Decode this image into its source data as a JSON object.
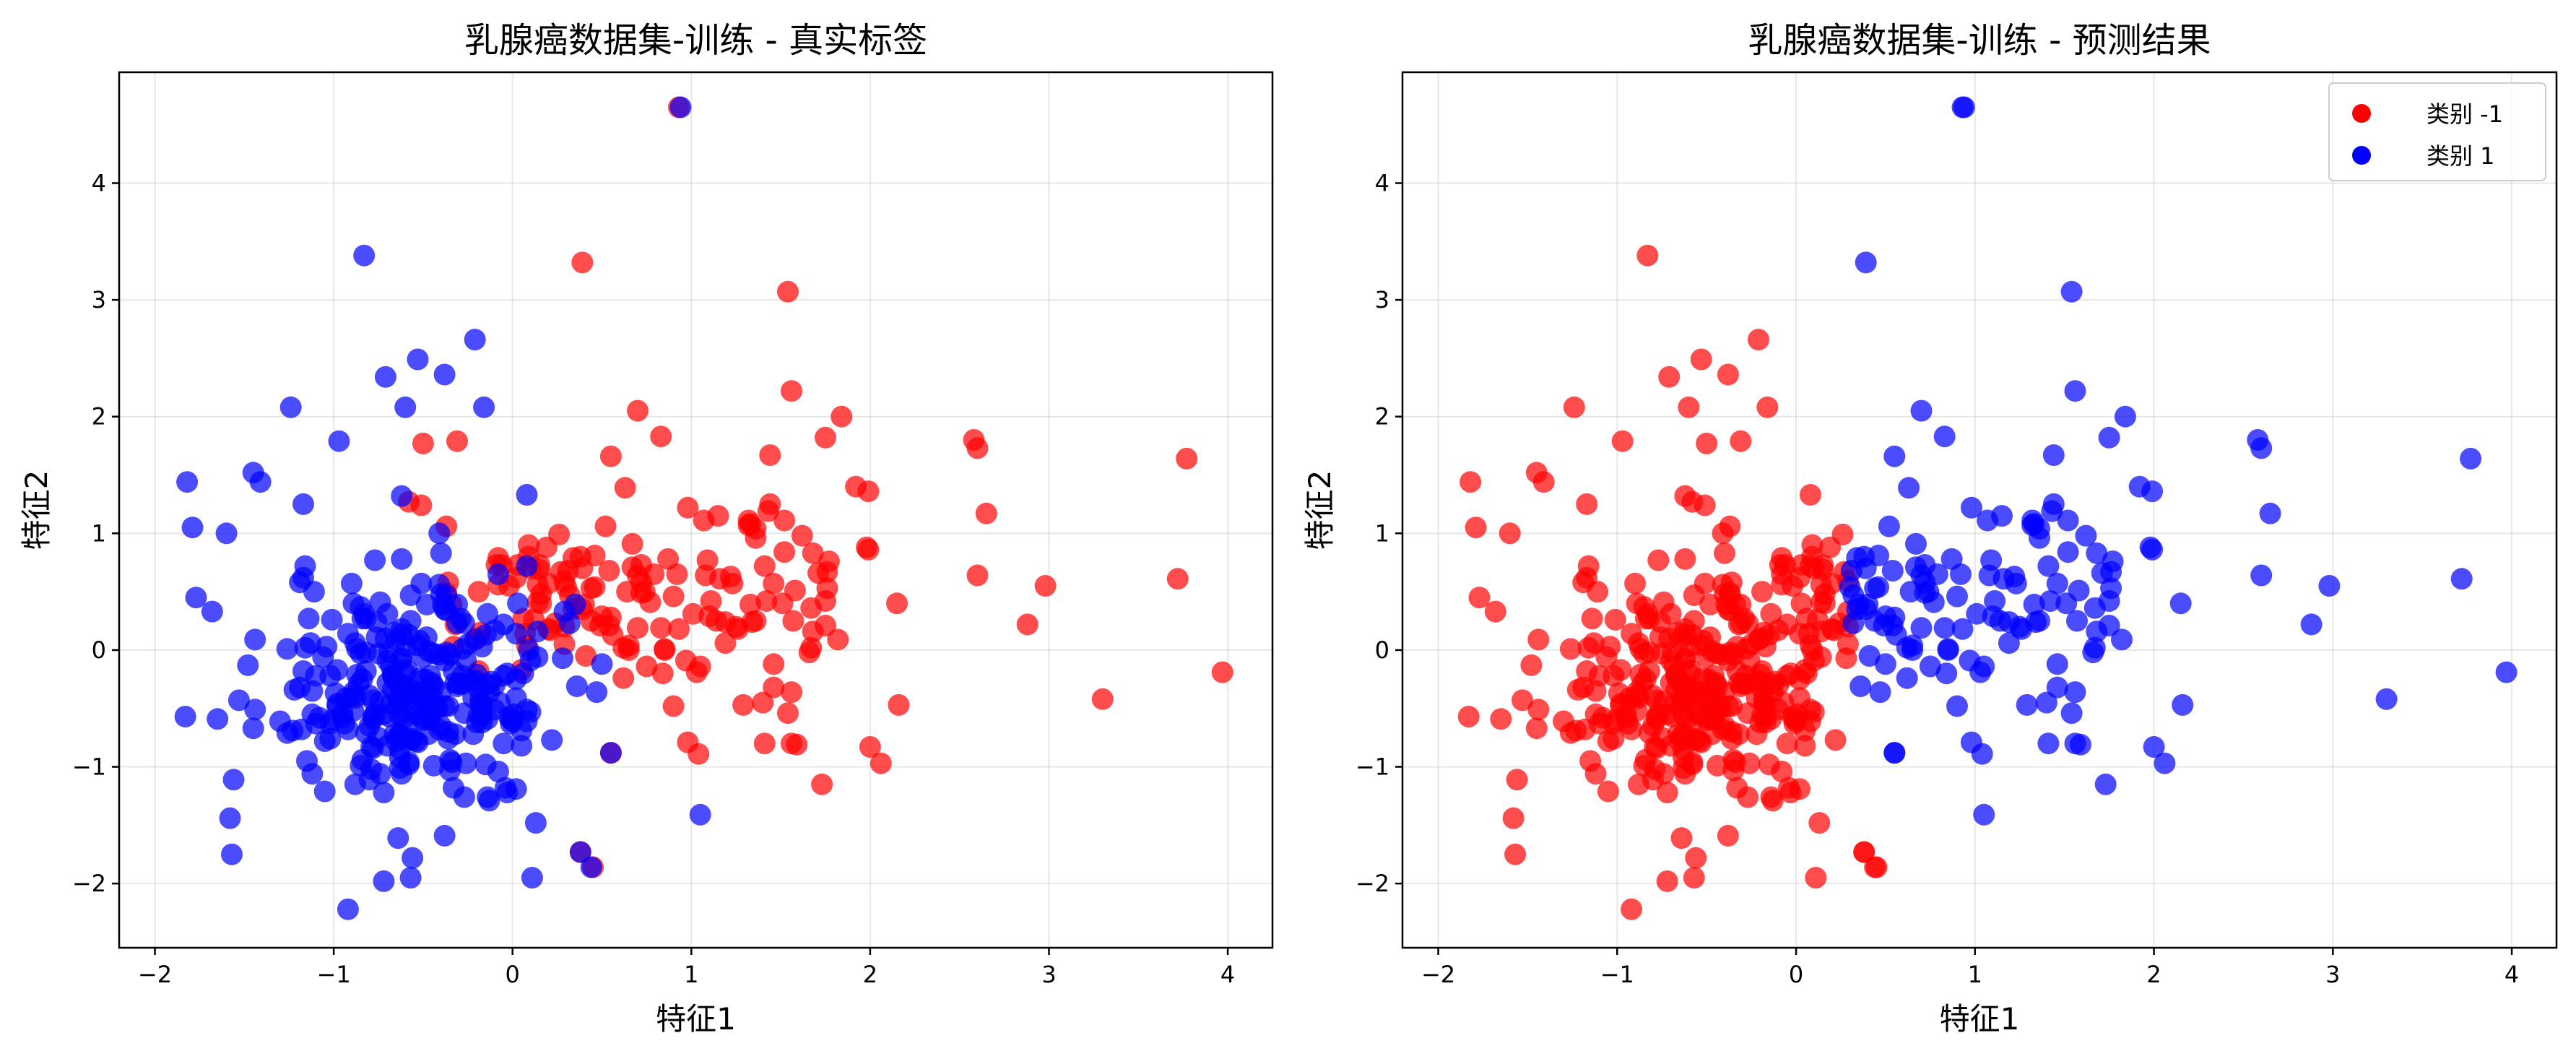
{
  "chart_data": [
    {
      "type": "scatter",
      "title": "乳腺癌数据集-训练 - 真实标签",
      "xlabel": "特征1",
      "ylabel": "特征2",
      "xlim": [
        -2.2,
        4.25
      ],
      "ylim": [
        -2.55,
        4.95
      ],
      "xticks": [
        -2,
        -1,
        0,
        1,
        2,
        3,
        4
      ],
      "yticks": [
        -2,
        -1,
        0,
        1,
        2,
        3,
        4
      ],
      "grid": true,
      "legend": null,
      "series": [
        {
          "color": "#ff0000",
          "points": []
        },
        {
          "color": "#0000ff",
          "points": []
        }
      ]
    },
    {
      "type": "scatter",
      "title": "乳腺癌数据集-训练 - 预测结果",
      "xlabel": "特征1",
      "ylabel": "特征2",
      "xlim": [
        -2.2,
        4.25
      ],
      "ylim": [
        -2.55,
        4.95
      ],
      "xticks": [
        -2,
        -1,
        0,
        1,
        2,
        3,
        4
      ],
      "yticks": [
        -2,
        -1,
        0,
        1,
        2,
        3,
        4
      ],
      "grid": true,
      "legend": "top-right",
      "series": [
        {
          "name": "类别 -1",
          "color": "#ff0000",
          "points": []
        },
        {
          "name": "类别 1",
          "color": "#0000ff",
          "points": []
        }
      ]
    }
  ]
}
